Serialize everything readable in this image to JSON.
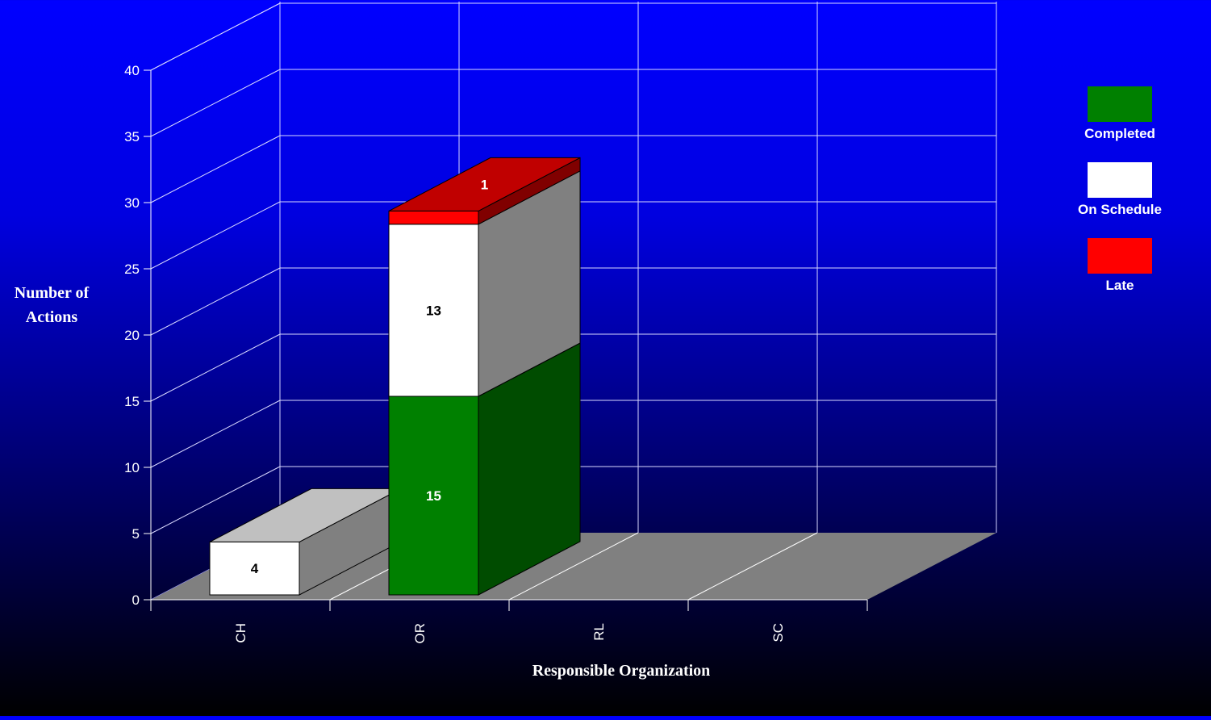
{
  "chart_data": {
    "type": "bar",
    "stacked": true,
    "three_d": true,
    "categories": [
      "CH",
      "OR",
      "RL",
      "SC"
    ],
    "series": [
      {
        "name": "Completed",
        "color": "#008000",
        "values": [
          0,
          15,
          0,
          0
        ]
      },
      {
        "name": "On Schedule",
        "color": "#ffffff",
        "values": [
          4,
          13,
          0,
          0
        ]
      },
      {
        "name": "Late",
        "color": "#ff0000",
        "values": [
          0,
          1,
          0,
          0
        ]
      }
    ],
    "title": "",
    "xlabel": "Responsible Organization",
    "ylabel_line1": "Number of",
    "ylabel_line2": "Actions",
    "ylim": [
      0,
      40
    ],
    "yticks": [
      0,
      5,
      10,
      15,
      20,
      25,
      30,
      35,
      40
    ],
    "grid": true,
    "legend_position": "right"
  }
}
